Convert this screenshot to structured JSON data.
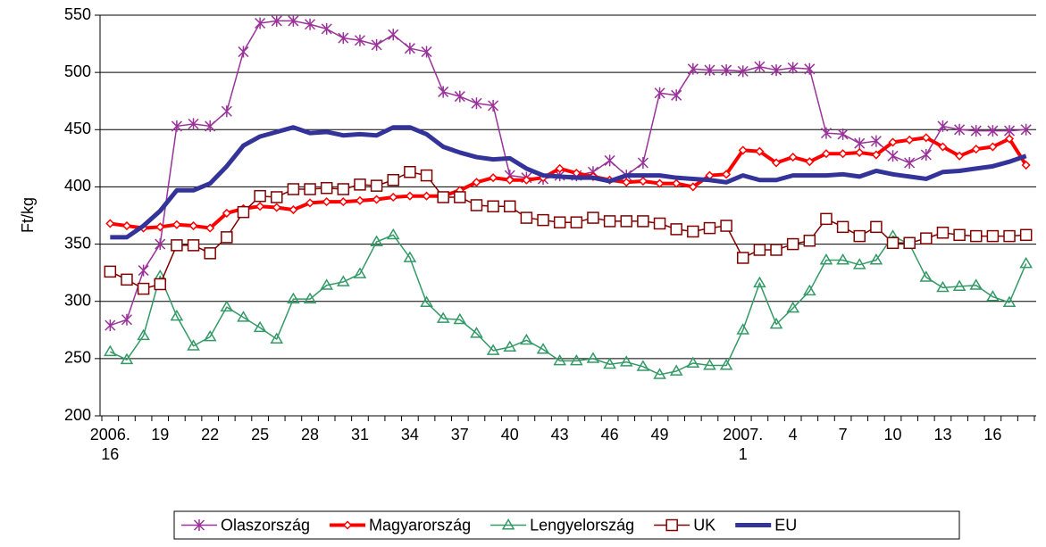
{
  "chart_data": {
    "type": "line",
    "y_label": "Ft/kg",
    "categories": [
      "2006. 16",
      null,
      null,
      "19",
      null,
      null,
      "22",
      null,
      null,
      "25",
      null,
      null,
      "28",
      null,
      null,
      "31",
      null,
      null,
      "34",
      null,
      null,
      "37",
      null,
      null,
      "40",
      null,
      null,
      "43",
      null,
      null,
      "46",
      null,
      null,
      "49",
      null,
      null,
      null,
      null,
      "2007. 1",
      null,
      null,
      "4",
      null,
      null,
      "7",
      null,
      null,
      "10",
      null,
      null,
      "13",
      null,
      null,
      "16",
      null,
      null
    ],
    "ylim": [
      200,
      550
    ],
    "yticks": [
      200,
      250,
      300,
      350,
      400,
      450,
      500,
      550
    ],
    "grid": true,
    "legend": "bottom",
    "series": [
      {
        "name": "Olaszország",
        "color": "#993399",
        "marker": "star",
        "values": [
          279,
          284,
          327,
          350,
          453,
          455,
          453,
          466,
          518,
          543,
          545,
          545,
          542,
          538,
          530,
          528,
          524,
          533,
          521,
          518,
          483,
          479,
          473,
          471,
          410,
          408,
          407,
          410,
          410,
          413,
          423,
          410,
          421,
          482,
          480,
          503,
          502,
          502,
          501,
          505,
          502,
          504,
          503,
          447,
          446,
          438,
          440,
          427,
          421,
          428,
          453,
          450,
          449,
          449,
          449,
          450
        ]
      },
      {
        "name": "Magyarország",
        "color": "#ff0000",
        "marker": "diamond",
        "width": 4,
        "values": [
          368,
          366,
          364,
          365,
          367,
          366,
          364,
          377,
          381,
          383,
          382,
          380,
          386,
          387,
          387,
          388,
          389,
          391,
          392,
          392,
          392,
          397,
          404,
          408,
          406,
          406,
          408,
          416,
          412,
          409,
          406,
          404,
          405,
          403,
          403,
          400,
          410,
          411,
          432,
          431,
          421,
          426,
          422,
          429,
          429,
          430,
          428,
          439,
          441,
          443,
          435,
          427,
          433,
          435,
          442,
          419
        ]
      },
      {
        "name": "Lengyelország",
        "color": "#339966",
        "marker": "triangle",
        "values": [
          256,
          249,
          270,
          322,
          287,
          261,
          269,
          295,
          286,
          277,
          267,
          302,
          302,
          314,
          317,
          324,
          352,
          358,
          338,
          299,
          285,
          284,
          272,
          257,
          260,
          266,
          258,
          248,
          248,
          250,
          245,
          247,
          243,
          236,
          239,
          246,
          244,
          244,
          275,
          316,
          280,
          294,
          309,
          336,
          336,
          332,
          336,
          357,
          350,
          321,
          312,
          313,
          314,
          304,
          299,
          333
        ]
      },
      {
        "name": "UK",
        "color": "#800000",
        "marker": "square",
        "values": [
          326,
          319,
          311,
          315,
          349,
          349,
          342,
          356,
          378,
          392,
          391,
          398,
          398,
          399,
          398,
          402,
          401,
          406,
          413,
          410,
          391,
          391,
          384,
          383,
          383,
          373,
          371,
          369,
          369,
          373,
          370,
          370,
          370,
          368,
          363,
          361,
          364,
          366,
          338,
          345,
          345,
          350,
          353,
          372,
          365,
          357,
          365,
          351,
          351,
          355,
          360,
          358,
          357,
          357,
          357,
          358
        ]
      },
      {
        "name": "EU",
        "color": "#333399",
        "marker": "none",
        "width": 5,
        "values": [
          356,
          356,
          366,
          379,
          397,
          397,
          403,
          418,
          436,
          444,
          448,
          452,
          447,
          448,
          445,
          446,
          445,
          452,
          452,
          446,
          435,
          430,
          426,
          424,
          425,
          416,
          410,
          409,
          408,
          408,
          405,
          410,
          410,
          410,
          408,
          407,
          406,
          404,
          410,
          406,
          406,
          410,
          410,
          410,
          411,
          409,
          414,
          411,
          409,
          407,
          413,
          414,
          416,
          418,
          422,
          427
        ]
      }
    ]
  }
}
